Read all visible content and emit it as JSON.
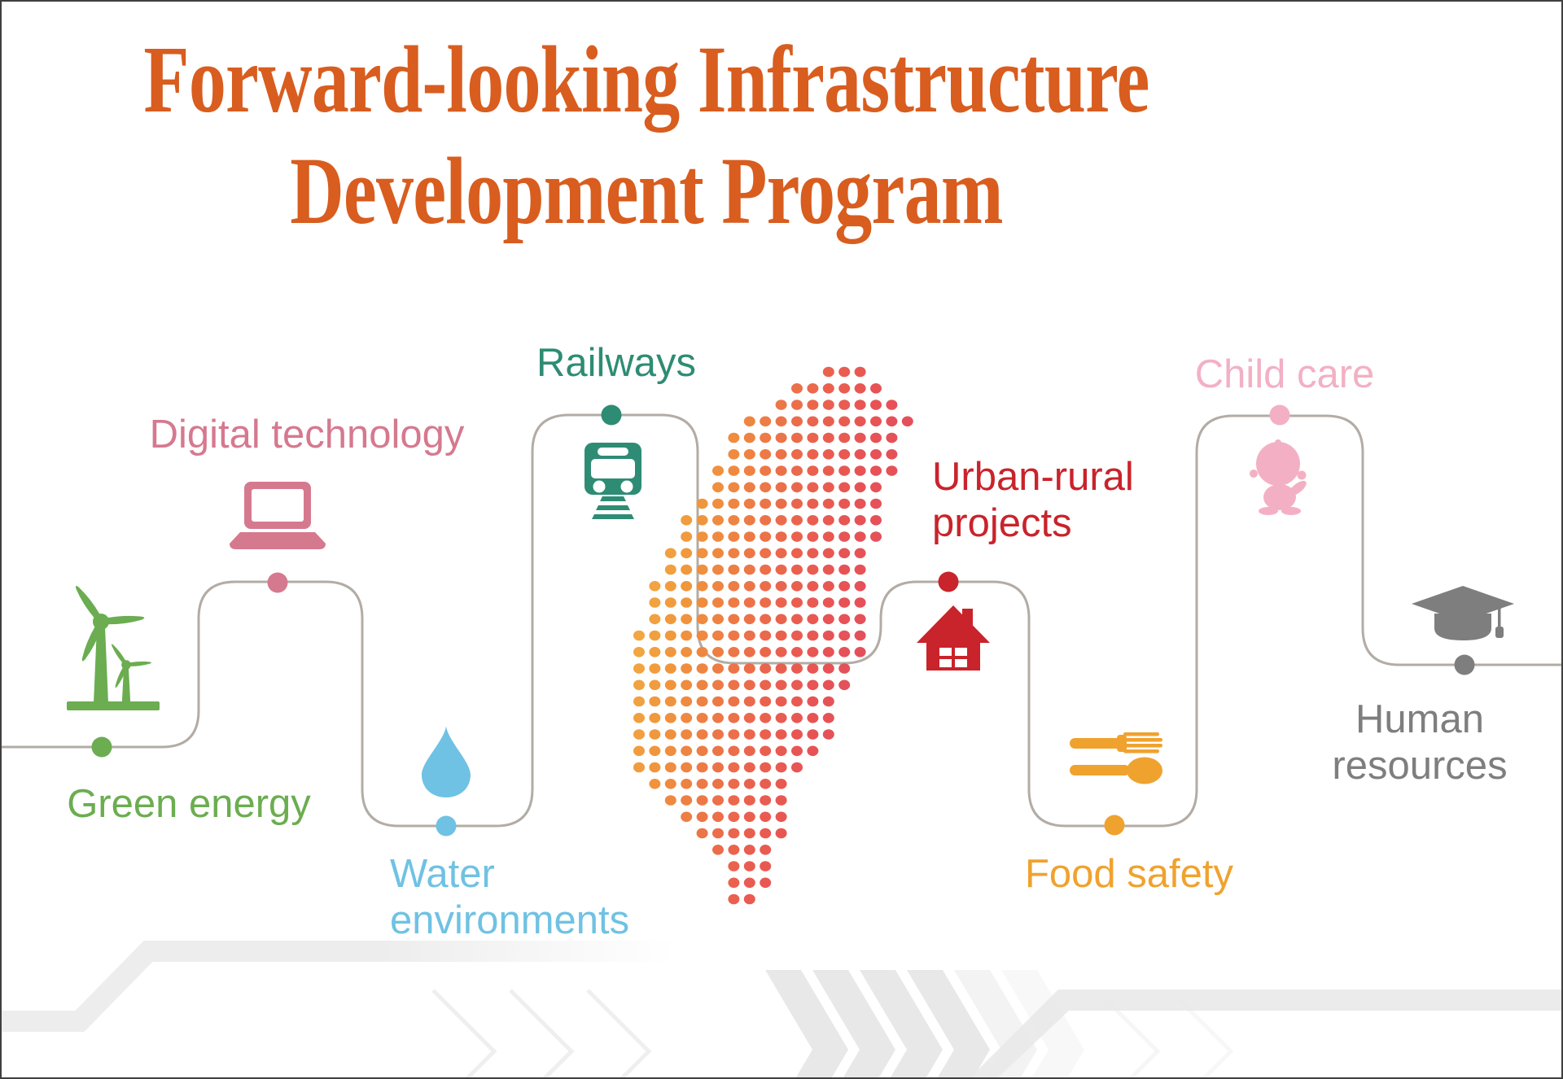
{
  "title": {
    "line1": "Forward-looking Infrastructure",
    "line2": "Development Program",
    "color": "#D85D1F"
  },
  "route": {
    "line_color": "#B3ACA5"
  },
  "categories": [
    {
      "id": "green-energy",
      "label": "Green energy",
      "color": "#6BAD50",
      "icon": "wind-turbine-icon"
    },
    {
      "id": "digital-technology",
      "label": "Digital technology",
      "color": "#D5798F",
      "icon": "laptop-icon"
    },
    {
      "id": "water-environments",
      "label": "Water environments",
      "color": "#6FC2E3",
      "icon": "water-drop-icon"
    },
    {
      "id": "railways",
      "label": "Railways",
      "color": "#2E8C74",
      "icon": "train-icon"
    },
    {
      "id": "urban-rural-projects",
      "label": "Urban-rural projects",
      "color": "#C9232B",
      "icon": "house-icon"
    },
    {
      "id": "food-safety",
      "label": "Food safety",
      "color": "#F0A22E",
      "icon": "fork-spoon-icon"
    },
    {
      "id": "child-care",
      "label": "Child care",
      "color": "#F3B0C5",
      "icon": "baby-icon"
    },
    {
      "id": "human-resources",
      "label": "Human resources",
      "color": "#7E7E7E",
      "icon": "graduation-cap-icon"
    }
  ],
  "map": {
    "name": "taiwan-dot-map",
    "gradient_west_to_east": [
      "#F6CB4F",
      "#F2AC43",
      "#F0963C",
      "#ED7B45",
      "#EA624E",
      "#E75355",
      "#E34F5C",
      "#E05063"
    ]
  },
  "decor": {
    "footer_gray": "#E8E8E8",
    "band_gray": "#ECECEC",
    "border_color": "#3F3F3F"
  }
}
